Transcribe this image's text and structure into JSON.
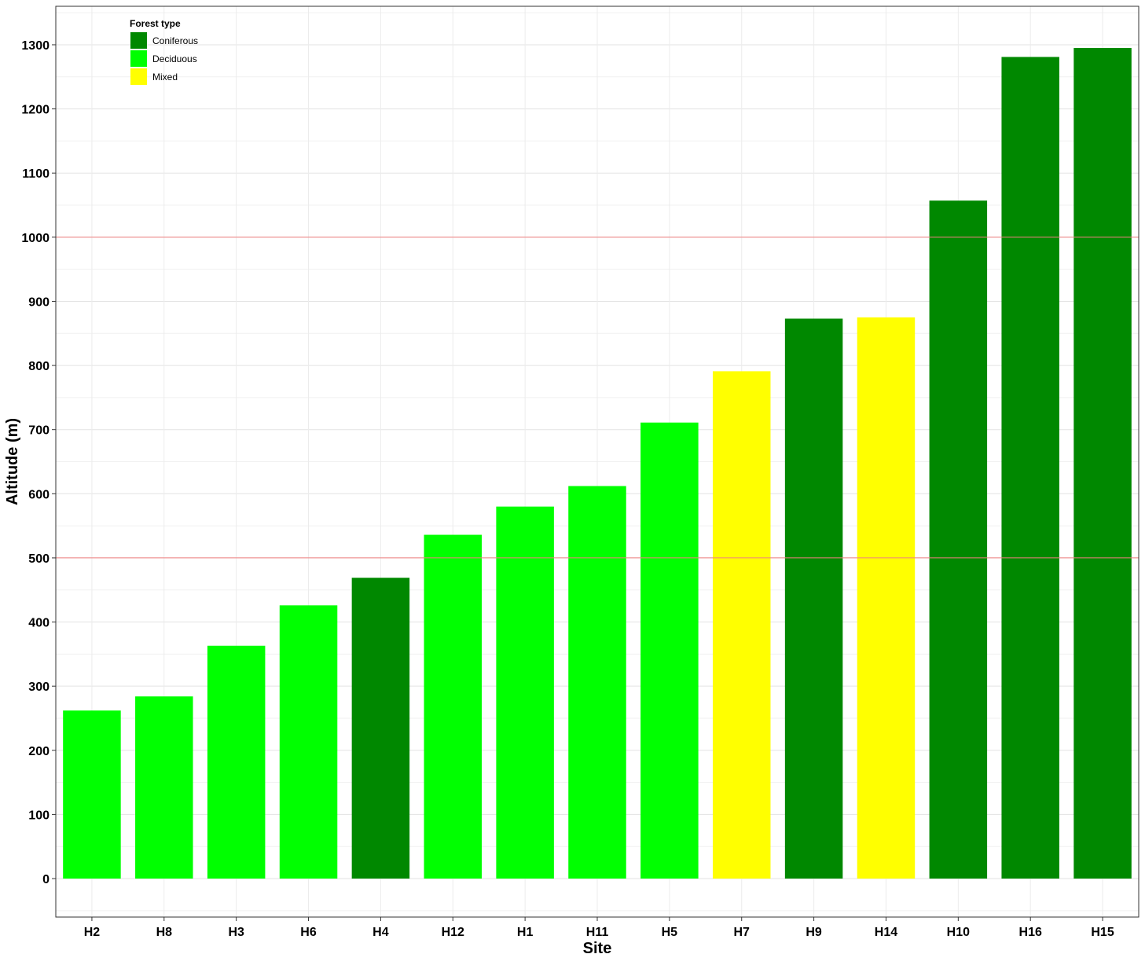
{
  "chart_data": {
    "type": "bar",
    "title": "",
    "xlabel": "Site",
    "ylabel": "Altitude (m)",
    "ylim": [
      -60,
      1360
    ],
    "yticks": [
      0,
      100,
      200,
      300,
      400,
      500,
      600,
      700,
      800,
      900,
      1000,
      1100,
      1200,
      1300
    ],
    "grid": true,
    "legend_position": "top-left",
    "legend_title": "Forest type",
    "categories": [
      "H2",
      "H8",
      "H3",
      "H6",
      "H4",
      "H12",
      "H1",
      "H11",
      "H5",
      "H7",
      "H9",
      "H14",
      "H10",
      "H16",
      "H15"
    ],
    "values": [
      262,
      284,
      363,
      426,
      469,
      536,
      580,
      612,
      711,
      791,
      873,
      875,
      1057,
      1281,
      1295
    ],
    "forest_type": [
      "Deciduous",
      "Deciduous",
      "Deciduous",
      "Deciduous",
      "Coniferous",
      "Deciduous",
      "Deciduous",
      "Deciduous",
      "Deciduous",
      "Mixed",
      "Coniferous",
      "Mixed",
      "Coniferous",
      "Coniferous",
      "Coniferous"
    ],
    "groups": [
      {
        "name": "Coniferous",
        "color": "#008800"
      },
      {
        "name": "Deciduous",
        "color": "#00ff00"
      },
      {
        "name": "Mixed",
        "color": "#ffff00"
      }
    ],
    "reference_lines": [
      500,
      1000
    ],
    "reference_line_color": "#f08080"
  }
}
